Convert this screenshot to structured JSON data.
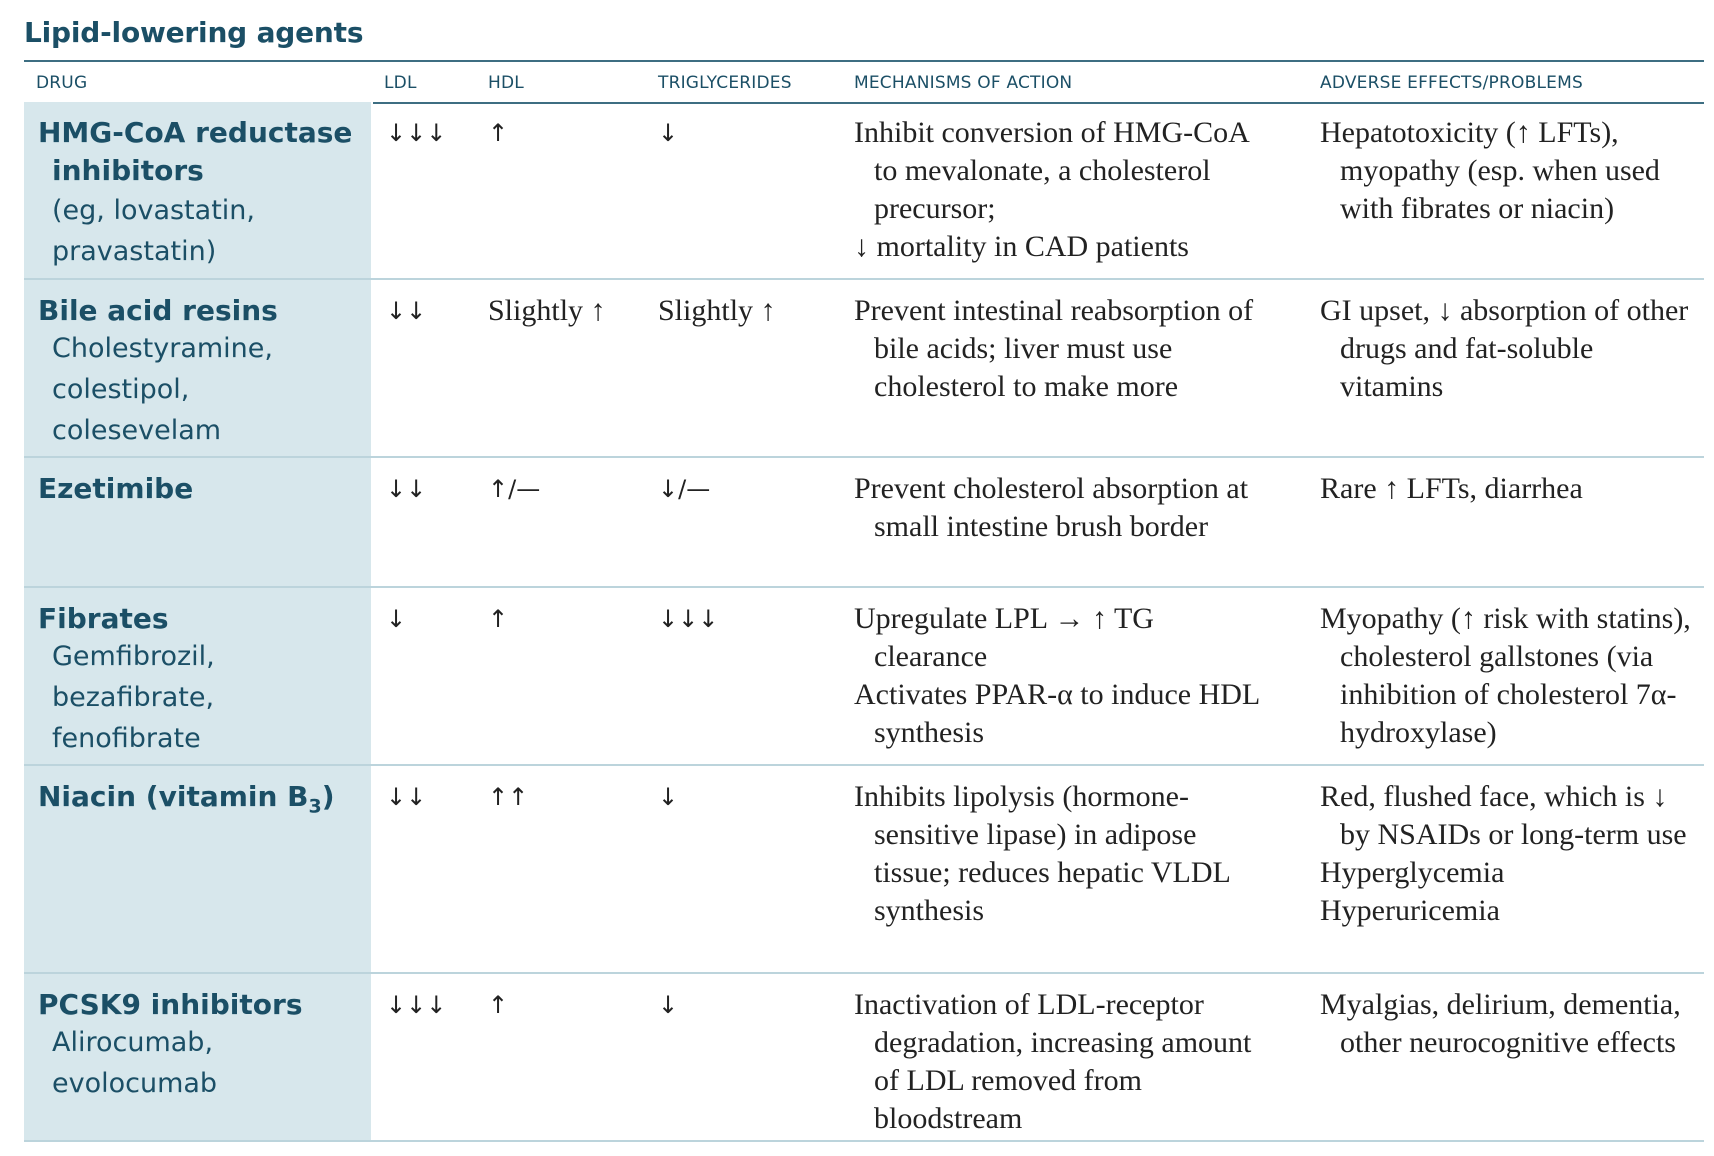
{
  "title": "Lipid-lowering agents",
  "headers": {
    "drug": "DRUG",
    "ldl": "LDL",
    "hdl": "HDL",
    "tg": "TRIGLYCERIDES",
    "moa": "MECHANISMS OF ACTION",
    "adverse": "ADVERSE EFFECTS/PROBLEMS"
  },
  "rows": [
    {
      "drug": "HMG-CoA reductase inhibitors",
      "examples": [
        "(eg, lovastatin,",
        "pravastatin)"
      ],
      "ldl": "↓↓↓",
      "hdl": "↑",
      "tg": "↓",
      "moa": [
        "Inhibit conversion of HMG-CoA to mevalonate, a cholesterol precursor;",
        "↓ mortality in CAD patients"
      ],
      "adverse": [
        "Hepatotoxicity (↑ LFTs), myopathy (esp. when used with fibrates or niacin)"
      ]
    },
    {
      "drug": "Bile acid resins",
      "examples": [
        "Cholestyramine,",
        "colestipol,",
        "colesevelam"
      ],
      "ldl": "↓↓",
      "hdl": "Slightly ↑",
      "tg": "Slightly ↑",
      "moa": [
        "Prevent intestinal reabsorption of bile acids; liver must use cholesterol to make more"
      ],
      "adverse": [
        "GI upset, ↓ absorption of other drugs and fat-soluble vitamins"
      ]
    },
    {
      "drug": "Ezetimibe",
      "examples": [],
      "ldl": "↓↓",
      "hdl": "↑/—",
      "tg": "↓/—",
      "moa": [
        "Prevent cholesterol absorption at small intestine brush border"
      ],
      "adverse": [
        "Rare ↑ LFTs, diarrhea"
      ]
    },
    {
      "drug": "Fibrates",
      "examples": [
        "Gemfibrozil,",
        "bezafibrate,",
        "fenofibrate"
      ],
      "ldl": "↓",
      "hdl": "↑",
      "tg": "↓↓↓",
      "moa": [
        "Upregulate LPL → ↑ TG clearance",
        "Activates PPAR-α to induce HDL synthesis"
      ],
      "adverse": [
        "Myopathy (↑ risk with statins), cholesterol gallstones (via inhibition of cholesterol 7α-hydroxylase)"
      ]
    },
    {
      "drug": "Niacin (vitamin B",
      "drug_sub": "3",
      "drug_close": ")",
      "examples": [],
      "ldl": "↓↓",
      "hdl": "↑↑",
      "tg": "↓",
      "moa": [
        "Inhibits lipolysis (hormone-sensitive lipase) in adipose tissue; reduces hepatic VLDL synthesis"
      ],
      "adverse": [
        "Red, flushed face, which is ↓ by NSAIDs or long-term use",
        "Hyperglycemia",
        "Hyperuricemia"
      ]
    },
    {
      "drug": "PCSK9 inhibitors",
      "examples": [
        "Alirocumab,",
        "evolocumab"
      ],
      "ldl": "↓↓↓",
      "hdl": "↑",
      "tg": "↓",
      "moa": [
        "Inactivation of LDL-receptor degradation, increasing amount of LDL removed from bloodstream"
      ],
      "adverse": [
        "Myalgias, delirium, dementia, other neurocognitive effects"
      ]
    }
  ]
}
